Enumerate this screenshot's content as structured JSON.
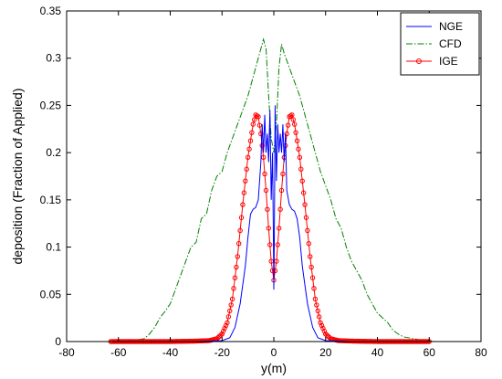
{
  "chart_data": {
    "type": "line",
    "title": "",
    "xlabel": "y(m)",
    "ylabel": "deposition (Fraction of Applied)",
    "xlim": [
      -80,
      80
    ],
    "ylim": [
      0,
      0.35
    ],
    "xticks": [
      -80,
      -60,
      -40,
      -20,
      0,
      20,
      40,
      60,
      80
    ],
    "yticks": [
      0,
      0.05,
      0.1,
      0.15,
      0.2,
      0.25,
      0.3,
      0.35
    ],
    "grid": false,
    "legend_position": "top-right",
    "series": [
      {
        "name": "NGE",
        "color": "#0000ff",
        "line_style": "solid",
        "marker": "none",
        "points": [
          [
            -30,
            0
          ],
          [
            -20,
            0.001
          ],
          [
            -17,
            0.004
          ],
          [
            -15,
            0.015
          ],
          [
            -13,
            0.04
          ],
          [
            -11,
            0.08
          ],
          [
            -10,
            0.11
          ],
          [
            -9,
            0.135
          ],
          [
            -8,
            0.14
          ],
          [
            -7,
            0.142
          ],
          [
            -6,
            0.15
          ],
          [
            -5,
            0.19
          ],
          [
            -4.5,
            0.23
          ],
          [
            -4,
            0.2
          ],
          [
            -3.5,
            0.24
          ],
          [
            -3,
            0.2
          ],
          [
            -2.5,
            0.22
          ],
          [
            -2,
            0.19
          ],
          [
            -1.5,
            0.245
          ],
          [
            -1,
            0.15
          ],
          [
            -0.5,
            0.2
          ],
          [
            -0.2,
            0.12
          ],
          [
            0,
            0.055
          ],
          [
            0.2,
            0.11
          ],
          [
            0.5,
            0.25
          ],
          [
            1,
            0.17
          ],
          [
            1.5,
            0.23
          ],
          [
            2,
            0.2
          ],
          [
            2.5,
            0.22
          ],
          [
            3,
            0.2
          ],
          [
            3.5,
            0.23
          ],
          [
            4,
            0.19
          ],
          [
            4.5,
            0.22
          ],
          [
            5,
            0.16
          ],
          [
            6,
            0.145
          ],
          [
            7,
            0.14
          ],
          [
            8,
            0.138
          ],
          [
            9,
            0.13
          ],
          [
            10,
            0.11
          ],
          [
            11,
            0.08
          ],
          [
            13,
            0.04
          ],
          [
            15,
            0.015
          ],
          [
            17,
            0.004
          ],
          [
            20,
            0.001
          ],
          [
            30,
            0
          ]
        ]
      },
      {
        "name": "CFD",
        "color": "#008000",
        "line_style": "dash-dot",
        "marker": "none",
        "points": [
          [
            -61,
            0
          ],
          [
            -55,
            0.001
          ],
          [
            -50,
            0.003
          ],
          [
            -48,
            0.008
          ],
          [
            -46,
            0.015
          ],
          [
            -44,
            0.025
          ],
          [
            -42,
            0.032
          ],
          [
            -40,
            0.04
          ],
          [
            -38,
            0.055
          ],
          [
            -36,
            0.07
          ],
          [
            -34,
            0.085
          ],
          [
            -32,
            0.1
          ],
          [
            -30,
            0.105
          ],
          [
            -28,
            0.13
          ],
          [
            -26,
            0.135
          ],
          [
            -24,
            0.16
          ],
          [
            -22,
            0.175
          ],
          [
            -20,
            0.18
          ],
          [
            -18,
            0.2
          ],
          [
            -16,
            0.215
          ],
          [
            -14,
            0.23
          ],
          [
            -12,
            0.245
          ],
          [
            -10,
            0.26
          ],
          [
            -8,
            0.28
          ],
          [
            -6,
            0.3
          ],
          [
            -4,
            0.32
          ],
          [
            -3,
            0.31
          ],
          [
            -2,
            0.26
          ],
          [
            -1,
            0.215
          ],
          [
            0,
            0.2
          ],
          [
            1,
            0.23
          ],
          [
            2,
            0.29
          ],
          [
            3,
            0.315
          ],
          [
            4,
            0.305
          ],
          [
            6,
            0.29
          ],
          [
            8,
            0.275
          ],
          [
            10,
            0.26
          ],
          [
            12,
            0.24
          ],
          [
            14,
            0.22
          ],
          [
            16,
            0.2
          ],
          [
            18,
            0.18
          ],
          [
            20,
            0.165
          ],
          [
            22,
            0.15
          ],
          [
            24,
            0.13
          ],
          [
            26,
            0.12
          ],
          [
            28,
            0.1
          ],
          [
            30,
            0.085
          ],
          [
            32,
            0.075
          ],
          [
            34,
            0.065
          ],
          [
            36,
            0.05
          ],
          [
            38,
            0.04
          ],
          [
            40,
            0.03
          ],
          [
            42,
            0.025
          ],
          [
            44,
            0.02
          ],
          [
            46,
            0.012
          ],
          [
            48,
            0.008
          ],
          [
            50,
            0.005
          ],
          [
            54,
            0.003
          ],
          [
            58,
            0.001
          ],
          [
            62,
            0
          ]
        ]
      },
      {
        "name": "IGE",
        "color": "#ff0000",
        "line_style": "solid",
        "marker": "circle",
        "points": [
          [
            -63,
            0
          ],
          [
            -40,
            0
          ],
          [
            -30,
            0.0005
          ],
          [
            -25,
            0.001
          ],
          [
            -22,
            0.003
          ],
          [
            -20,
            0.008
          ],
          [
            -18,
            0.02
          ],
          [
            -16,
            0.045
          ],
          [
            -14,
            0.09
          ],
          [
            -12,
            0.145
          ],
          [
            -10,
            0.195
          ],
          [
            -8,
            0.23
          ],
          [
            -7,
            0.24
          ],
          [
            -6,
            0.238
          ],
          [
            -5,
            0.22
          ],
          [
            -4,
            0.195
          ],
          [
            -3,
            0.16
          ],
          [
            -2,
            0.12
          ],
          [
            -1,
            0.085
          ],
          [
            0,
            0.065
          ],
          [
            1,
            0.085
          ],
          [
            2,
            0.12
          ],
          [
            3,
            0.16
          ],
          [
            4,
            0.195
          ],
          [
            5,
            0.22
          ],
          [
            6,
            0.238
          ],
          [
            7,
            0.24
          ],
          [
            8,
            0.23
          ],
          [
            10,
            0.195
          ],
          [
            12,
            0.145
          ],
          [
            14,
            0.09
          ],
          [
            16,
            0.045
          ],
          [
            18,
            0.02
          ],
          [
            20,
            0.008
          ],
          [
            22,
            0.003
          ],
          [
            25,
            0.001
          ],
          [
            30,
            0.0005
          ],
          [
            40,
            0
          ],
          [
            60,
            0
          ]
        ]
      }
    ]
  }
}
